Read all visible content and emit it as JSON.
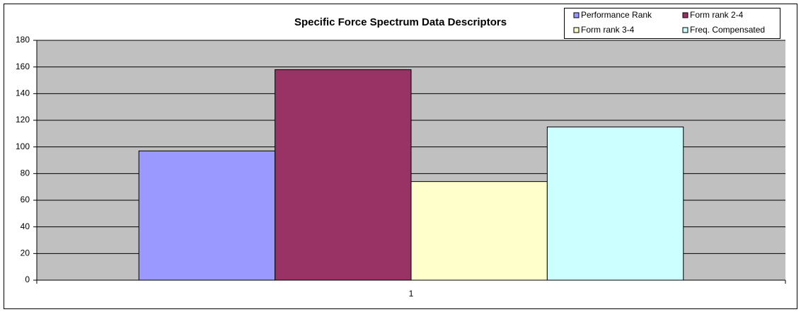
{
  "chart_data": {
    "type": "bar",
    "title": "Specific Force Spectrum Data Descriptors",
    "categories": [
      "1"
    ],
    "series": [
      {
        "name": "Performance Rank",
        "color": "#9999ff",
        "values": [
          97
        ]
      },
      {
        "name": "Form rank 2-4",
        "color": "#993366",
        "values": [
          158
        ]
      },
      {
        "name": "Form rank 3-4",
        "color": "#ffffcc",
        "values": [
          74
        ]
      },
      {
        "name": "Freq. Compensated",
        "color": "#ccffff",
        "values": [
          115
        ]
      }
    ],
    "ylim": [
      0,
      180
    ],
    "yticks": [
      0,
      20,
      40,
      60,
      80,
      100,
      120,
      140,
      160,
      180
    ],
    "grid": true,
    "legend": "top-right"
  }
}
